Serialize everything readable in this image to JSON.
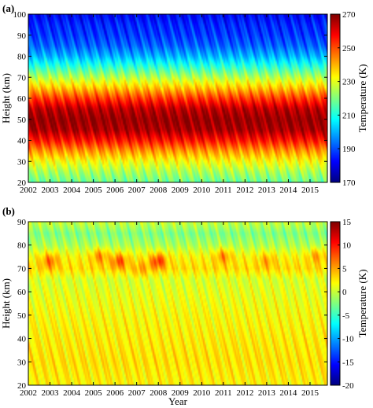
{
  "chart_data": [
    {
      "panel_label": "(a)",
      "type": "heatmap",
      "title": "",
      "xlabel": "",
      "ylabel": "Height (km)",
      "colorbar_label": "Temperature (K)",
      "xlim": [
        2002,
        2015.8
      ],
      "ylim": [
        20,
        100
      ],
      "x_ticks": [
        2002,
        2003,
        2004,
        2005,
        2006,
        2007,
        2008,
        2009,
        2010,
        2011,
        2012,
        2013,
        2014,
        2015
      ],
      "y_ticks": [
        20,
        30,
        40,
        50,
        60,
        70,
        80,
        90,
        100
      ],
      "colorbar_range": [
        170,
        270
      ],
      "colorbar_ticks": [
        170,
        190,
        210,
        230,
        250,
        270
      ],
      "colormap": "jet",
      "profile": {
        "heights": [
          20,
          25,
          30,
          35,
          40,
          45,
          50,
          55,
          60,
          65,
          70,
          75,
          80,
          85,
          90,
          95,
          100
        ],
        "temperature": [
          218,
          224,
          232,
          243,
          256,
          266,
          268,
          264,
          252,
          238,
          225,
          212,
          200,
          192,
          188,
          186,
          182
        ]
      },
      "variability_amplitude": 8
    },
    {
      "panel_label": "(b)",
      "type": "heatmap",
      "title": "",
      "xlabel": "Year",
      "ylabel": "Height (km)",
      "colorbar_label": "Temperature (K)",
      "xlim": [
        2002,
        2015.8
      ],
      "ylim": [
        20,
        90
      ],
      "x_ticks": [
        2002,
        2003,
        2004,
        2005,
        2006,
        2007,
        2008,
        2009,
        2010,
        2011,
        2012,
        2013,
        2014,
        2015
      ],
      "y_ticks": [
        20,
        30,
        40,
        50,
        60,
        70,
        80,
        90
      ],
      "colorbar_range": [
        -20,
        15
      ],
      "colorbar_ticks": [
        -20,
        -15,
        -10,
        -5,
        0,
        5,
        10,
        15
      ],
      "colormap": "jet",
      "profile": {
        "heights": [
          20,
          30,
          40,
          50,
          60,
          65,
          70,
          75,
          80,
          85,
          90
        ],
        "temperature": [
          2.2,
          2.8,
          2.4,
          1.8,
          1.0,
          0.5,
          3.0,
          2.0,
          -1.0,
          -2.5,
          0.0
        ]
      },
      "variability_amplitude": 2.5,
      "warm_spots": [
        {
          "year": 2003,
          "height": 73,
          "value": 7
        },
        {
          "year": 2005.3,
          "height": 75,
          "value": 6
        },
        {
          "year": 2006.2,
          "height": 73,
          "value": 8
        },
        {
          "year": 2008.0,
          "height": 73,
          "value": 9
        },
        {
          "year": 2011.0,
          "height": 75,
          "value": 6
        },
        {
          "year": 2013.0,
          "height": 73,
          "value": 5
        },
        {
          "year": 2015.3,
          "height": 75,
          "value": 5
        },
        {
          "year": 2007.2,
          "height": 70,
          "value": 5
        }
      ]
    }
  ]
}
